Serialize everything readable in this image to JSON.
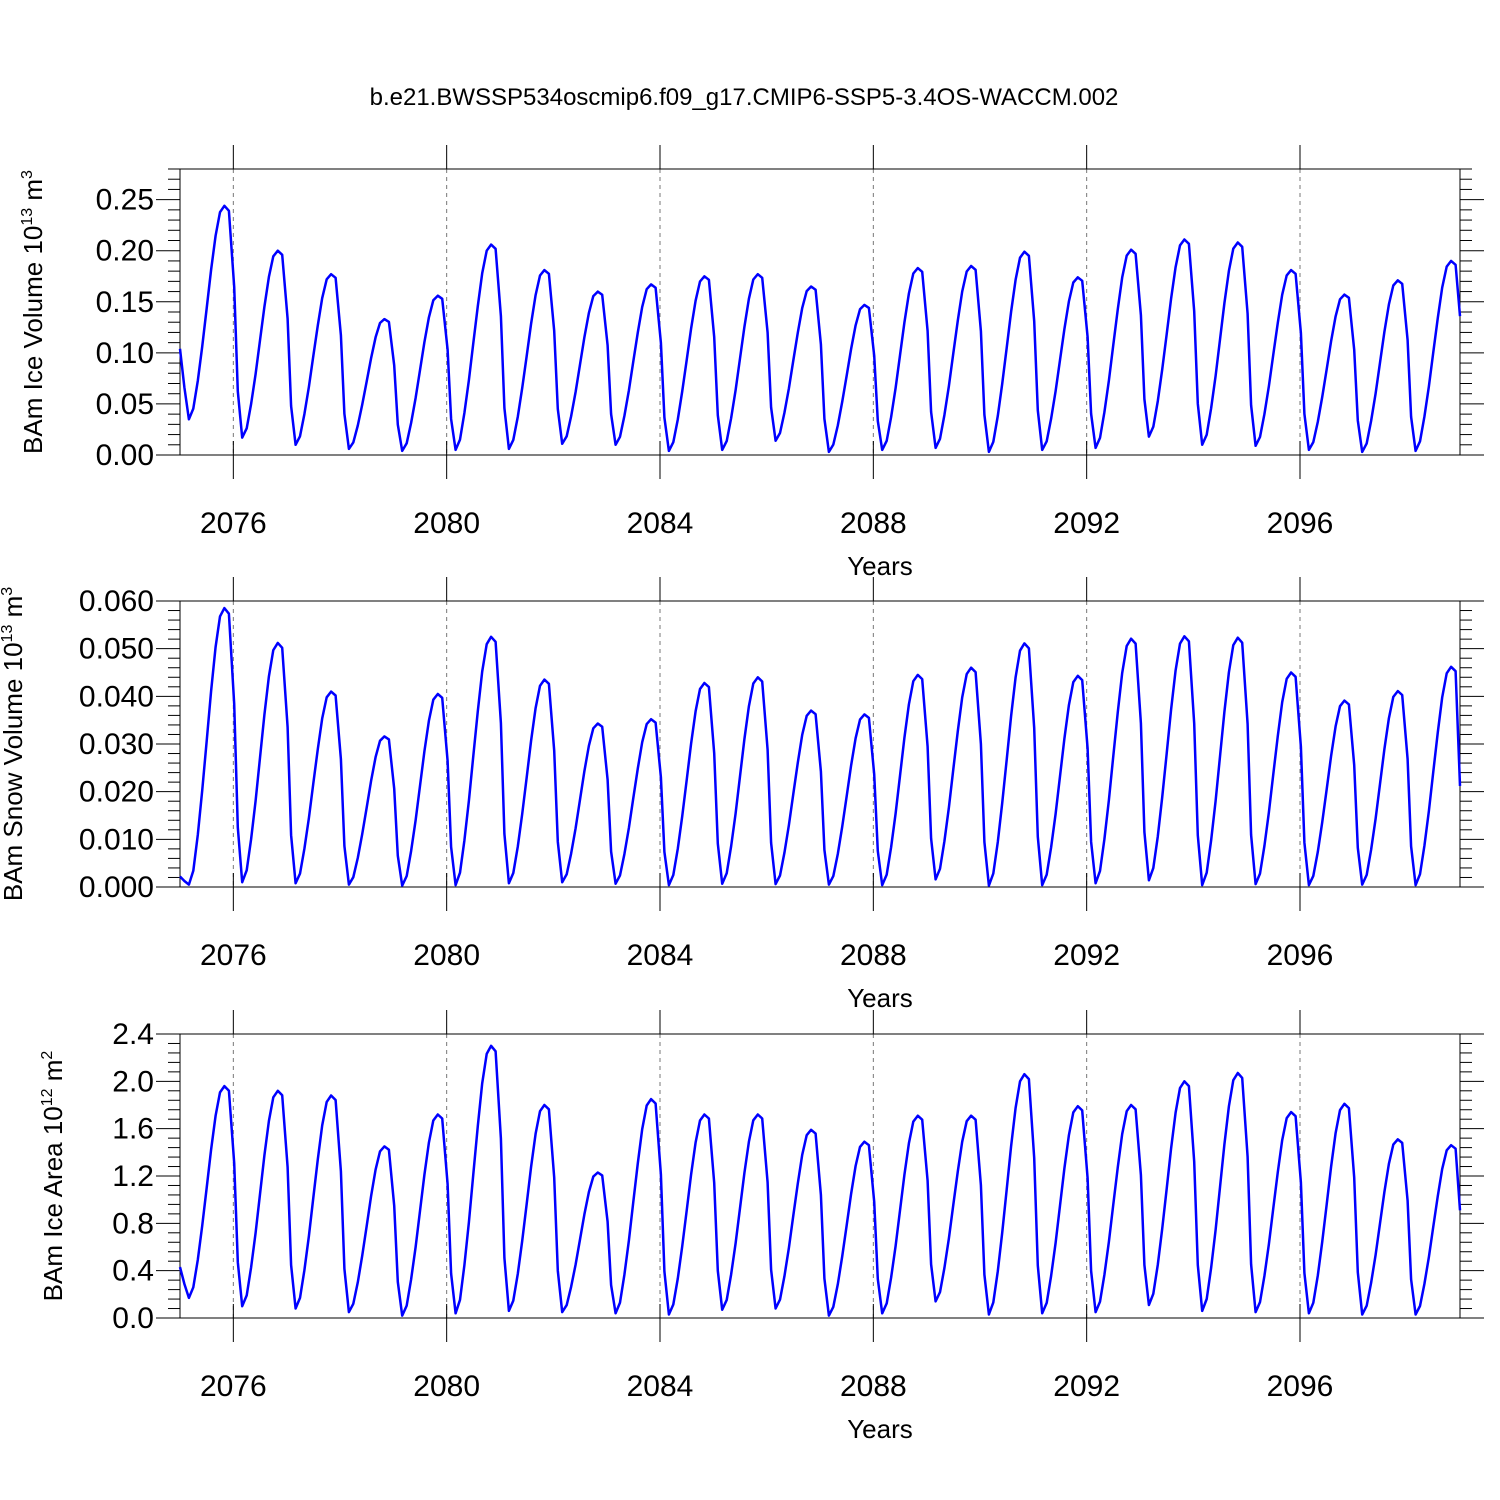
{
  "title": "b.e21.BWSSP534oscmip6.f09_g17.CMIP6-SSP5-3.4OS-WACCM.002",
  "chart_data": [
    {
      "type": "line",
      "id": "ice-volume",
      "ylabel_main": "BAm Ice Volume 10",
      "ylabel_sup": "13",
      "ylabel_unit": " m",
      "ylabel_unit_sup": "3",
      "xlabel": "Years",
      "xlim": [
        2075.0,
        2099.0
      ],
      "ylim": [
        0.0,
        0.28
      ],
      "yticks": [
        0.0,
        0.05,
        0.1,
        0.15,
        0.2,
        0.25
      ],
      "ytick_labels": [
        "0.00",
        "0.05",
        "0.10",
        "0.15",
        "0.20",
        "0.25"
      ],
      "xticks": [
        2076,
        2080,
        2084,
        2088,
        2092,
        2096
      ],
      "xtick_labels": [
        "2076",
        "2080",
        "2084",
        "2088",
        "2092",
        "2096"
      ],
      "grid": "vertical dashed at labeled years",
      "series": [
        {
          "name": "BAm Ice Volume",
          "color": "#0000ff",
          "peaks": [
            0.244,
            0.2,
            0.177,
            0.133,
            0.156,
            0.206,
            0.181,
            0.16,
            0.167,
            0.175,
            0.177,
            0.165,
            0.147,
            0.183,
            0.185,
            0.199,
            0.174,
            0.201,
            0.211,
            0.208,
            0.181,
            0.157,
            0.171,
            0.19
          ],
          "troughs": [
            0.035,
            0.017,
            0.01,
            0.006,
            0.004,
            0.005,
            0.006,
            0.011,
            0.01,
            0.004,
            0.005,
            0.014,
            0.003,
            0.005,
            0.007,
            0.003,
            0.005,
            0.007,
            0.018,
            0.01,
            0.009,
            0.005,
            0.003,
            0.004
          ],
          "first_value": 0.104,
          "last_value": 0.136
        }
      ]
    },
    {
      "type": "line",
      "id": "snow-volume",
      "ylabel_main": "BAm Snow Volume 10",
      "ylabel_sup": "13",
      "ylabel_unit": " m",
      "ylabel_unit_sup": "3",
      "xlabel": "Years",
      "xlim": [
        2075.0,
        2099.0
      ],
      "ylim": [
        0.0,
        0.06
      ],
      "yticks": [
        0.0,
        0.01,
        0.02,
        0.03,
        0.04,
        0.05,
        0.06
      ],
      "ytick_labels": [
        "0.000",
        "0.010",
        "0.020",
        "0.030",
        "0.040",
        "0.050",
        "0.060"
      ],
      "xticks": [
        2076,
        2080,
        2084,
        2088,
        2092,
        2096
      ],
      "xtick_labels": [
        "2076",
        "2080",
        "2084",
        "2088",
        "2092",
        "2096"
      ],
      "grid": "vertical dashed at labeled years",
      "series": [
        {
          "name": "BAm Snow Volume",
          "color": "#0000ff",
          "peaks": [
            0.0585,
            0.0512,
            0.041,
            0.0316,
            0.0405,
            0.0525,
            0.0435,
            0.0343,
            0.0352,
            0.0428,
            0.044,
            0.037,
            0.0362,
            0.0445,
            0.046,
            0.0511,
            0.0443,
            0.0521,
            0.0526,
            0.0523,
            0.045,
            0.0391,
            0.0411,
            0.0462
          ],
          "troughs": [
            0.0005,
            0.001,
            0.0008,
            0.0005,
            0.0003,
            0.0004,
            0.0008,
            0.001,
            0.0007,
            0.0004,
            0.0007,
            0.0006,
            0.0005,
            0.0004,
            0.0016,
            0.0003,
            0.0004,
            0.0008,
            0.0014,
            0.0004,
            0.0006,
            0.0004,
            0.0005,
            0.0004
          ],
          "first_value": 0.0022,
          "last_value": 0.0212
        }
      ]
    },
    {
      "type": "line",
      "id": "ice-area",
      "ylabel_main": "BAm Ice Area 10",
      "ylabel_sup": "12",
      "ylabel_unit": " m",
      "ylabel_unit_sup": "2",
      "xlabel": "Years",
      "xlim": [
        2075.0,
        2099.0
      ],
      "ylim": [
        0.0,
        2.4
      ],
      "yticks": [
        0.0,
        0.4,
        0.8,
        1.2,
        1.6,
        2.0,
        2.4
      ],
      "ytick_labels": [
        "0.0",
        "0.4",
        "0.8",
        "1.2",
        "1.6",
        "2.0",
        "2.4"
      ],
      "xticks": [
        2076,
        2080,
        2084,
        2088,
        2092,
        2096
      ],
      "xtick_labels": [
        "2076",
        "2080",
        "2084",
        "2088",
        "2092",
        "2096"
      ],
      "grid": "vertical dashed at labeled years",
      "series": [
        {
          "name": "BAm Ice Area",
          "color": "#0000ff",
          "peaks": [
            1.96,
            1.92,
            1.88,
            1.45,
            1.72,
            2.3,
            1.8,
            1.23,
            1.85,
            1.72,
            1.72,
            1.59,
            1.49,
            1.71,
            1.71,
            2.06,
            1.79,
            1.8,
            2.0,
            2.07,
            1.74,
            1.81,
            1.51,
            1.46
          ],
          "troughs": [
            0.17,
            0.1,
            0.08,
            0.05,
            0.02,
            0.04,
            0.06,
            0.05,
            0.04,
            0.03,
            0.07,
            0.08,
            0.02,
            0.04,
            0.14,
            0.03,
            0.04,
            0.05,
            0.11,
            0.06,
            0.05,
            0.04,
            0.03,
            0.03
          ],
          "first_value": 0.43,
          "last_value": 0.91
        }
      ]
    }
  ]
}
